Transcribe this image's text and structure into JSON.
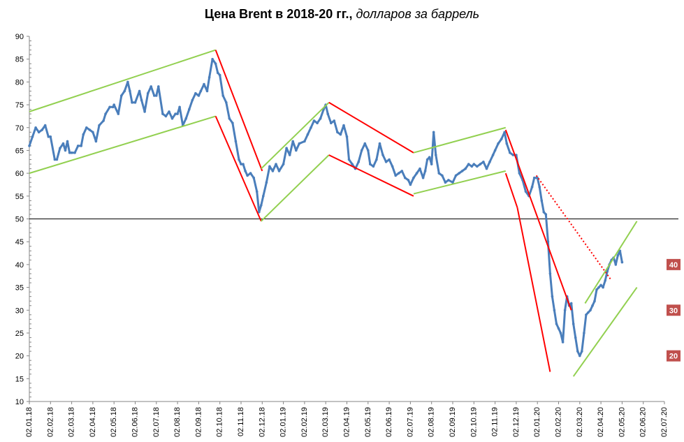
{
  "title": {
    "bold": "Цена Brent в 2018-20 гг.,",
    "italic": " долларов за баррель"
  },
  "chart_data": {
    "type": "line",
    "ylim": [
      10,
      90
    ],
    "ystep": 5,
    "y_ticks": [
      "10",
      "15",
      "20",
      "25",
      "30",
      "35",
      "40",
      "45",
      "50",
      "55",
      "60",
      "65",
      "70",
      "75",
      "80",
      "85",
      "90"
    ],
    "x_ticks": [
      "02.01.18",
      "02.02.18",
      "02.03.18",
      "02.04.18",
      "02.05.18",
      "02.06.18",
      "02.07.18",
      "02.08.18",
      "02.09.18",
      "02.10.18",
      "02.11.18",
      "02.12.18",
      "02.01.19",
      "02.02.19",
      "02.03.19",
      "02.04.19",
      "02.05.19",
      "02.06.19",
      "02.07.19",
      "02.08.19",
      "02.09.19",
      "02.10.19",
      "02.11.19",
      "02.12.19",
      "02.01.20",
      "02.02.20",
      "02.03.20",
      "02.04.20",
      "02.05.20",
      "02.06.20",
      "02.07.20"
    ],
    "reference_line": 50,
    "series": [
      {
        "color": "#4a7ebb",
        "points": [
          [
            0,
            66
          ],
          [
            0.15,
            68
          ],
          [
            0.3,
            70
          ],
          [
            0.45,
            69
          ],
          [
            0.6,
            69.5
          ],
          [
            0.75,
            70.5
          ],
          [
            0.9,
            68
          ],
          [
            1.0,
            68
          ],
          [
            1.2,
            63
          ],
          [
            1.3,
            63
          ],
          [
            1.45,
            65.5
          ],
          [
            1.6,
            66.5
          ],
          [
            1.7,
            65
          ],
          [
            1.8,
            67
          ],
          [
            1.9,
            64.5
          ],
          [
            2.0,
            64.5
          ],
          [
            2.15,
            64.5
          ],
          [
            2.3,
            66
          ],
          [
            2.45,
            66
          ],
          [
            2.55,
            68.5
          ],
          [
            2.7,
            70
          ],
          [
            2.85,
            69.5
          ],
          [
            3.0,
            69
          ],
          [
            3.15,
            67
          ],
          [
            3.3,
            70.5
          ],
          [
            3.5,
            71.5
          ],
          [
            3.6,
            73
          ],
          [
            3.8,
            74.5
          ],
          [
            3.95,
            74.5
          ],
          [
            4.0,
            75
          ],
          [
            4.2,
            73
          ],
          [
            4.35,
            77
          ],
          [
            4.5,
            78
          ],
          [
            4.65,
            80
          ],
          [
            4.75,
            78
          ],
          [
            4.85,
            75.5
          ],
          [
            5.0,
            75.5
          ],
          [
            5.2,
            78
          ],
          [
            5.3,
            76
          ],
          [
            5.45,
            73.5
          ],
          [
            5.6,
            77.5
          ],
          [
            5.75,
            79
          ],
          [
            5.9,
            77
          ],
          [
            6.0,
            77
          ],
          [
            6.1,
            79
          ],
          [
            6.3,
            73
          ],
          [
            6.45,
            72.5
          ],
          [
            6.6,
            73.5
          ],
          [
            6.75,
            72
          ],
          [
            6.9,
            73
          ],
          [
            7.0,
            73
          ],
          [
            7.1,
            74.5
          ],
          [
            7.25,
            70.5
          ],
          [
            7.4,
            72
          ],
          [
            7.55,
            74
          ],
          [
            7.7,
            76
          ],
          [
            7.85,
            77.5
          ],
          [
            8.0,
            77
          ],
          [
            8.1,
            78
          ],
          [
            8.25,
            79.5
          ],
          [
            8.4,
            78
          ],
          [
            8.5,
            81
          ],
          [
            8.65,
            85
          ],
          [
            8.8,
            84
          ],
          [
            8.9,
            82
          ],
          [
            9.0,
            81.5
          ],
          [
            9.15,
            77
          ],
          [
            9.3,
            75.5
          ],
          [
            9.45,
            72
          ],
          [
            9.6,
            71
          ],
          [
            9.75,
            67
          ],
          [
            9.9,
            63
          ],
          [
            10.0,
            62
          ],
          [
            10.1,
            62
          ],
          [
            10.2,
            60.5
          ],
          [
            10.3,
            59.5
          ],
          [
            10.45,
            60
          ],
          [
            10.6,
            59
          ],
          [
            10.75,
            56
          ],
          [
            10.85,
            51.5
          ],
          [
            10.95,
            53
          ],
          [
            11.05,
            55
          ],
          [
            11.2,
            58
          ],
          [
            11.35,
            61.5
          ],
          [
            11.5,
            60.5
          ],
          [
            11.65,
            62
          ],
          [
            11.8,
            60.5
          ],
          [
            12.0,
            62
          ],
          [
            12.15,
            65.5
          ],
          [
            12.3,
            64
          ],
          [
            12.45,
            67
          ],
          [
            12.6,
            65
          ],
          [
            12.75,
            66.5
          ],
          [
            13.0,
            67
          ],
          [
            13.15,
            68.5
          ],
          [
            13.3,
            70
          ],
          [
            13.45,
            71.5
          ],
          [
            13.6,
            71
          ],
          [
            13.75,
            72
          ],
          [
            13.9,
            74
          ],
          [
            14.0,
            75
          ],
          [
            14.1,
            73
          ],
          [
            14.25,
            71
          ],
          [
            14.4,
            71.5
          ],
          [
            14.55,
            69
          ],
          [
            14.7,
            68.5
          ],
          [
            14.85,
            70.5
          ],
          [
            15.0,
            68
          ],
          [
            15.1,
            63
          ],
          [
            15.25,
            62
          ],
          [
            15.4,
            61
          ],
          [
            15.55,
            62.5
          ],
          [
            15.7,
            65
          ],
          [
            15.85,
            66.5
          ],
          [
            16.0,
            65
          ],
          [
            16.1,
            62
          ],
          [
            16.25,
            61.5
          ],
          [
            16.4,
            63
          ],
          [
            16.55,
            66.5
          ],
          [
            16.7,
            64
          ],
          [
            16.85,
            62.5
          ],
          [
            17.0,
            63
          ],
          [
            17.15,
            61.5
          ],
          [
            17.3,
            59.5
          ],
          [
            17.45,
            60
          ],
          [
            17.6,
            60.5
          ],
          [
            17.75,
            59
          ],
          [
            17.9,
            58.5
          ],
          [
            18.0,
            57.5
          ],
          [
            18.15,
            59
          ],
          [
            18.3,
            60
          ],
          [
            18.45,
            61
          ],
          [
            18.6,
            59
          ],
          [
            18.7,
            60.5
          ],
          [
            18.8,
            63
          ],
          [
            18.9,
            63.5
          ],
          [
            19.0,
            62
          ],
          [
            19.1,
            69
          ],
          [
            19.2,
            64
          ],
          [
            19.35,
            60
          ],
          [
            19.5,
            59.5
          ],
          [
            19.65,
            58
          ],
          [
            19.8,
            58.5
          ],
          [
            20.0,
            58
          ],
          [
            20.15,
            59.5
          ],
          [
            20.3,
            60
          ],
          [
            20.45,
            60.5
          ],
          [
            20.6,
            61
          ],
          [
            20.75,
            62
          ],
          [
            20.9,
            61.5
          ],
          [
            21.0,
            62
          ],
          [
            21.15,
            61.5
          ],
          [
            21.3,
            62
          ],
          [
            21.45,
            62.5
          ],
          [
            21.6,
            61
          ],
          [
            21.75,
            62.5
          ],
          [
            21.9,
            64
          ],
          [
            22.0,
            65
          ],
          [
            22.15,
            66.5
          ],
          [
            22.3,
            67.5
          ],
          [
            22.45,
            69
          ],
          [
            22.55,
            66.5
          ],
          [
            22.7,
            64.5
          ],
          [
            22.85,
            64
          ],
          [
            23.0,
            64
          ],
          [
            23.15,
            60
          ],
          [
            23.3,
            58.5
          ],
          [
            23.45,
            56
          ],
          [
            23.6,
            55
          ],
          [
            23.75,
            57
          ],
          [
            23.85,
            59
          ],
          [
            24.0,
            59
          ],
          [
            24.1,
            57
          ],
          [
            24.2,
            54
          ],
          [
            24.3,
            51.5
          ],
          [
            24.4,
            51
          ],
          [
            24.5,
            45
          ],
          [
            24.6,
            38
          ],
          [
            24.7,
            33
          ],
          [
            24.8,
            30
          ],
          [
            24.9,
            27
          ],
          [
            25.0,
            26
          ],
          [
            25.1,
            25
          ],
          [
            25.2,
            23
          ],
          [
            25.3,
            30
          ],
          [
            25.4,
            33
          ],
          [
            25.5,
            31
          ],
          [
            25.6,
            31.5
          ],
          [
            25.7,
            27
          ],
          [
            25.8,
            24
          ],
          [
            25.9,
            21
          ],
          [
            26.0,
            20
          ],
          [
            26.1,
            21
          ],
          [
            26.2,
            25
          ],
          [
            26.3,
            29
          ],
          [
            26.4,
            29.5
          ],
          [
            26.5,
            30
          ],
          [
            26.6,
            31
          ],
          [
            26.7,
            32
          ],
          [
            26.8,
            34.5
          ],
          [
            26.9,
            35
          ],
          [
            27.0,
            35.5
          ],
          [
            27.1,
            35
          ],
          [
            27.2,
            36.5
          ],
          [
            27.3,
            38.5
          ],
          [
            27.4,
            40
          ],
          [
            27.5,
            41
          ],
          [
            27.6,
            41.5
          ],
          [
            27.7,
            40
          ],
          [
            27.8,
            42
          ],
          [
            27.9,
            43
          ],
          [
            28.0,
            40.5
          ]
        ]
      }
    ],
    "trend_lines": [
      {
        "color": "#92d050",
        "from": [
          0,
          73.5
        ],
        "to": [
          8.8,
          87
        ]
      },
      {
        "color": "#92d050",
        "from": [
          0,
          60
        ],
        "to": [
          8.8,
          72.5
        ]
      },
      {
        "color": "#ff0000",
        "from": [
          8.8,
          87
        ],
        "to": [
          11.0,
          60.5
        ]
      },
      {
        "color": "#ff0000",
        "from": [
          8.8,
          72.5
        ],
        "to": [
          10.95,
          49.5
        ]
      },
      {
        "color": "#92d050",
        "from": [
          10.95,
          61
        ],
        "to": [
          14.15,
          75.5
        ]
      },
      {
        "color": "#92d050",
        "from": [
          10.95,
          49.5
        ],
        "to": [
          14.15,
          64
        ]
      },
      {
        "color": "#ff0000",
        "from": [
          14.15,
          75.5
        ],
        "to": [
          18.15,
          64.5
        ]
      },
      {
        "color": "#ff0000",
        "from": [
          14.15,
          64
        ],
        "to": [
          18.15,
          55
        ]
      },
      {
        "color": "#92d050",
        "from": [
          18.15,
          64.5
        ],
        "to": [
          22.5,
          70
        ]
      },
      {
        "color": "#92d050",
        "from": [
          18.15,
          55.5
        ],
        "to": [
          22.5,
          60.5
        ]
      },
      {
        "color": "#ff0000",
        "from": [
          22.5,
          69.5
        ],
        "to": [
          25.6,
          30
        ]
      },
      {
        "color": "#ff0000",
        "from": [
          22.5,
          60
        ],
        "to": [
          23.05,
          52.5
        ]
      },
      {
        "color": "#ff0000",
        "from": [
          23.05,
          52.5
        ],
        "to": [
          24.6,
          16.5
        ]
      },
      {
        "color": "#ff0000",
        "from": [
          23.95,
          59.5
        ],
        "to": [
          27.5,
          36.5
        ],
        "dotted": true
      },
      {
        "color": "#92d050",
        "from": [
          25.7,
          15.5
        ],
        "to": [
          28.7,
          35
        ]
      },
      {
        "color": "#92d050",
        "from": [
          26.25,
          31.5
        ],
        "to": [
          28.7,
          49.5
        ]
      }
    ],
    "badges": [
      {
        "text": "40",
        "value": 40,
        "color": "#c0504d"
      },
      {
        "text": "30",
        "value": 30,
        "color": "#c0504d"
      },
      {
        "text": "20",
        "value": 20,
        "color": "#c0504d"
      }
    ]
  }
}
